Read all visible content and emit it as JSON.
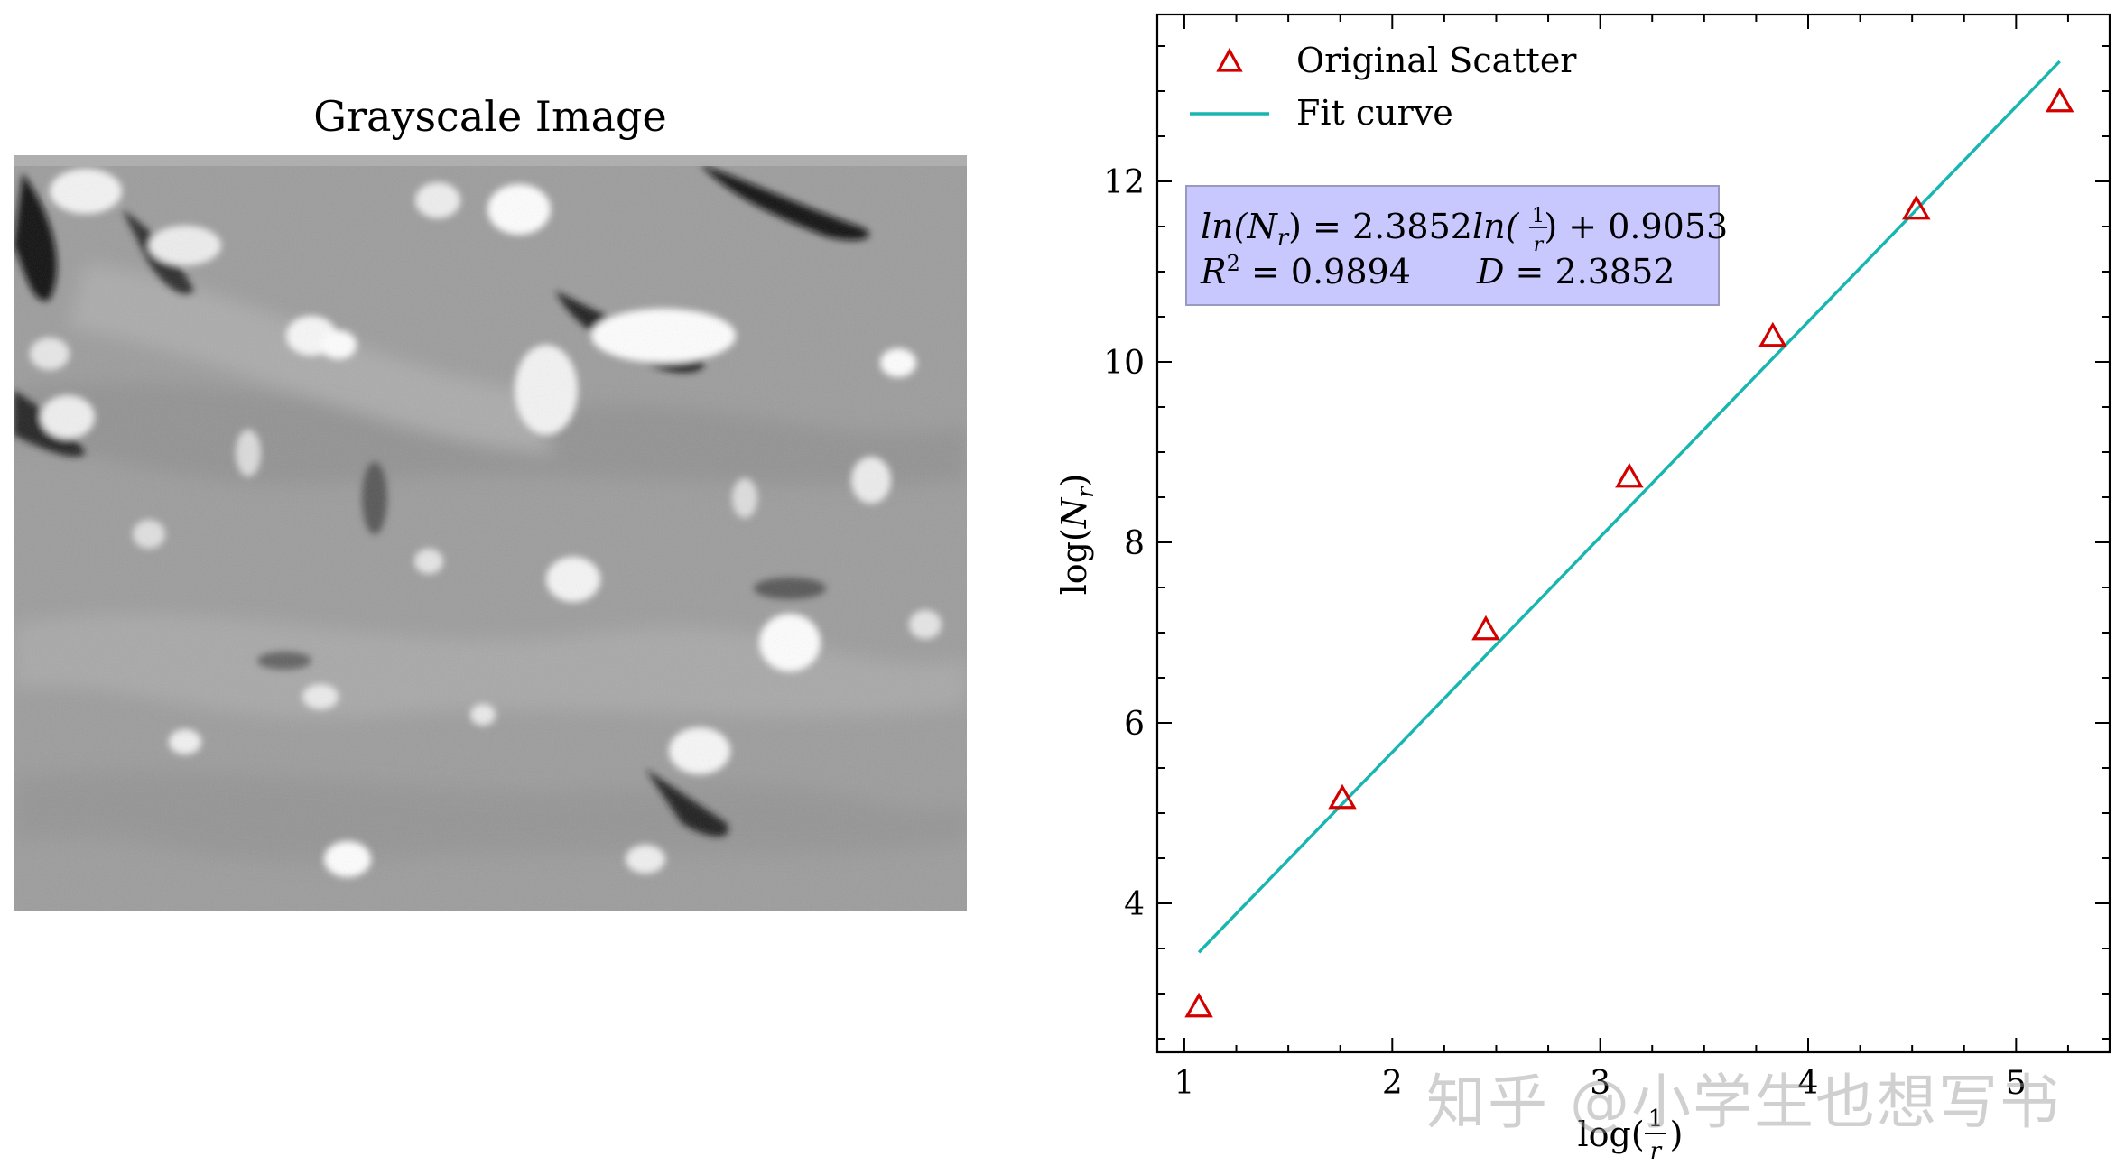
{
  "image_panel": {
    "title": "Grayscale Image"
  },
  "chart_data": {
    "type": "scatter",
    "title": "",
    "xlabel": "log(1/r)",
    "ylabel": "log(N_r)",
    "xlim": [
      0.87,
      5.45
    ],
    "ylim": [
      2.35,
      13.85
    ],
    "xticks": [
      1,
      2,
      3,
      4,
      5
    ],
    "yticks": [
      4,
      6,
      8,
      10,
      12
    ],
    "grid": false,
    "legend_position": "top-left",
    "series": [
      {
        "name": "Original Scatter",
        "kind": "scatter",
        "marker": "triangle",
        "color": "#d40000",
        "x": [
          1.07,
          1.76,
          2.45,
          3.14,
          3.83,
          4.52,
          5.21
        ],
        "y": [
          2.85,
          5.16,
          7.03,
          8.72,
          10.28,
          11.69,
          12.88
        ]
      },
      {
        "name": "Fit curve",
        "kind": "line",
        "color": "#17b6b0",
        "x": [
          1.07,
          5.21
        ],
        "y": [
          3.457,
          13.33
        ]
      }
    ],
    "annotation": {
      "line1": "ln(N_r) = 2.3852ln(1/r) + 0.9053",
      "line2_left": "R² = 0.9894",
      "line2_right": "D = 2.3852",
      "box_color": "#c8c8ff"
    }
  },
  "watermark": "知乎 @小学生也想写书"
}
